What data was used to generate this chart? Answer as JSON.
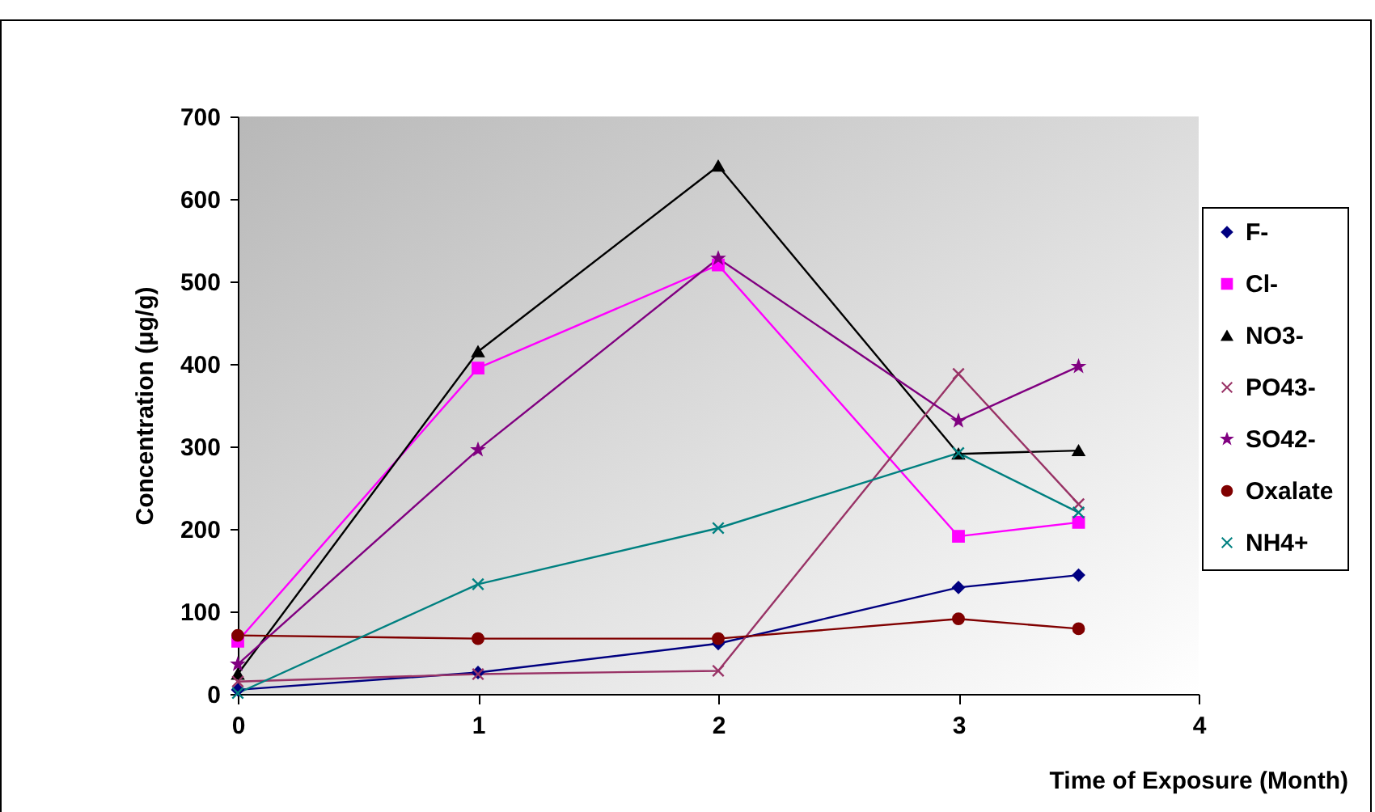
{
  "chart_data": {
    "type": "line",
    "xlabel": "Time of Exposure (Month)",
    "ylabel": "Concentration (μg/g)",
    "x": [
      0,
      1,
      2,
      3,
      3.5
    ],
    "xlim": [
      0,
      4
    ],
    "xticks": [
      0,
      1,
      2,
      3,
      4
    ],
    "ylim": [
      0,
      700
    ],
    "yticks": [
      0,
      100,
      200,
      300,
      400,
      500,
      600,
      700
    ],
    "grid": false,
    "legend": "right",
    "line_style": "solid",
    "series": [
      {
        "name": "F-",
        "color": "#000080",
        "marker": "diamond",
        "values": [
          5,
          26,
          61,
          129,
          144
        ]
      },
      {
        "name": "Cl-",
        "color": "#ff00ff",
        "marker": "square",
        "values": [
          64,
          395,
          520,
          191,
          208
        ]
      },
      {
        "name": "NO3-",
        "color": "#000000",
        "marker": "triangle",
        "values": [
          24,
          415,
          640,
          291,
          295
        ]
      },
      {
        "name": "PO43-",
        "color": "#993366",
        "marker": "cross",
        "values": [
          15,
          24,
          28,
          388,
          230
        ]
      },
      {
        "name": "SO42-",
        "color": "#800080",
        "marker": "star",
        "values": [
          36,
          296,
          528,
          331,
          397
        ]
      },
      {
        "name": "Oxalate",
        "color": "#800000",
        "marker": "circle",
        "values": [
          71,
          67,
          67,
          91,
          79
        ]
      },
      {
        "name": "NH4+",
        "color": "#008080",
        "marker": "cross",
        "values": [
          1,
          133,
          201,
          292,
          220
        ]
      }
    ]
  }
}
